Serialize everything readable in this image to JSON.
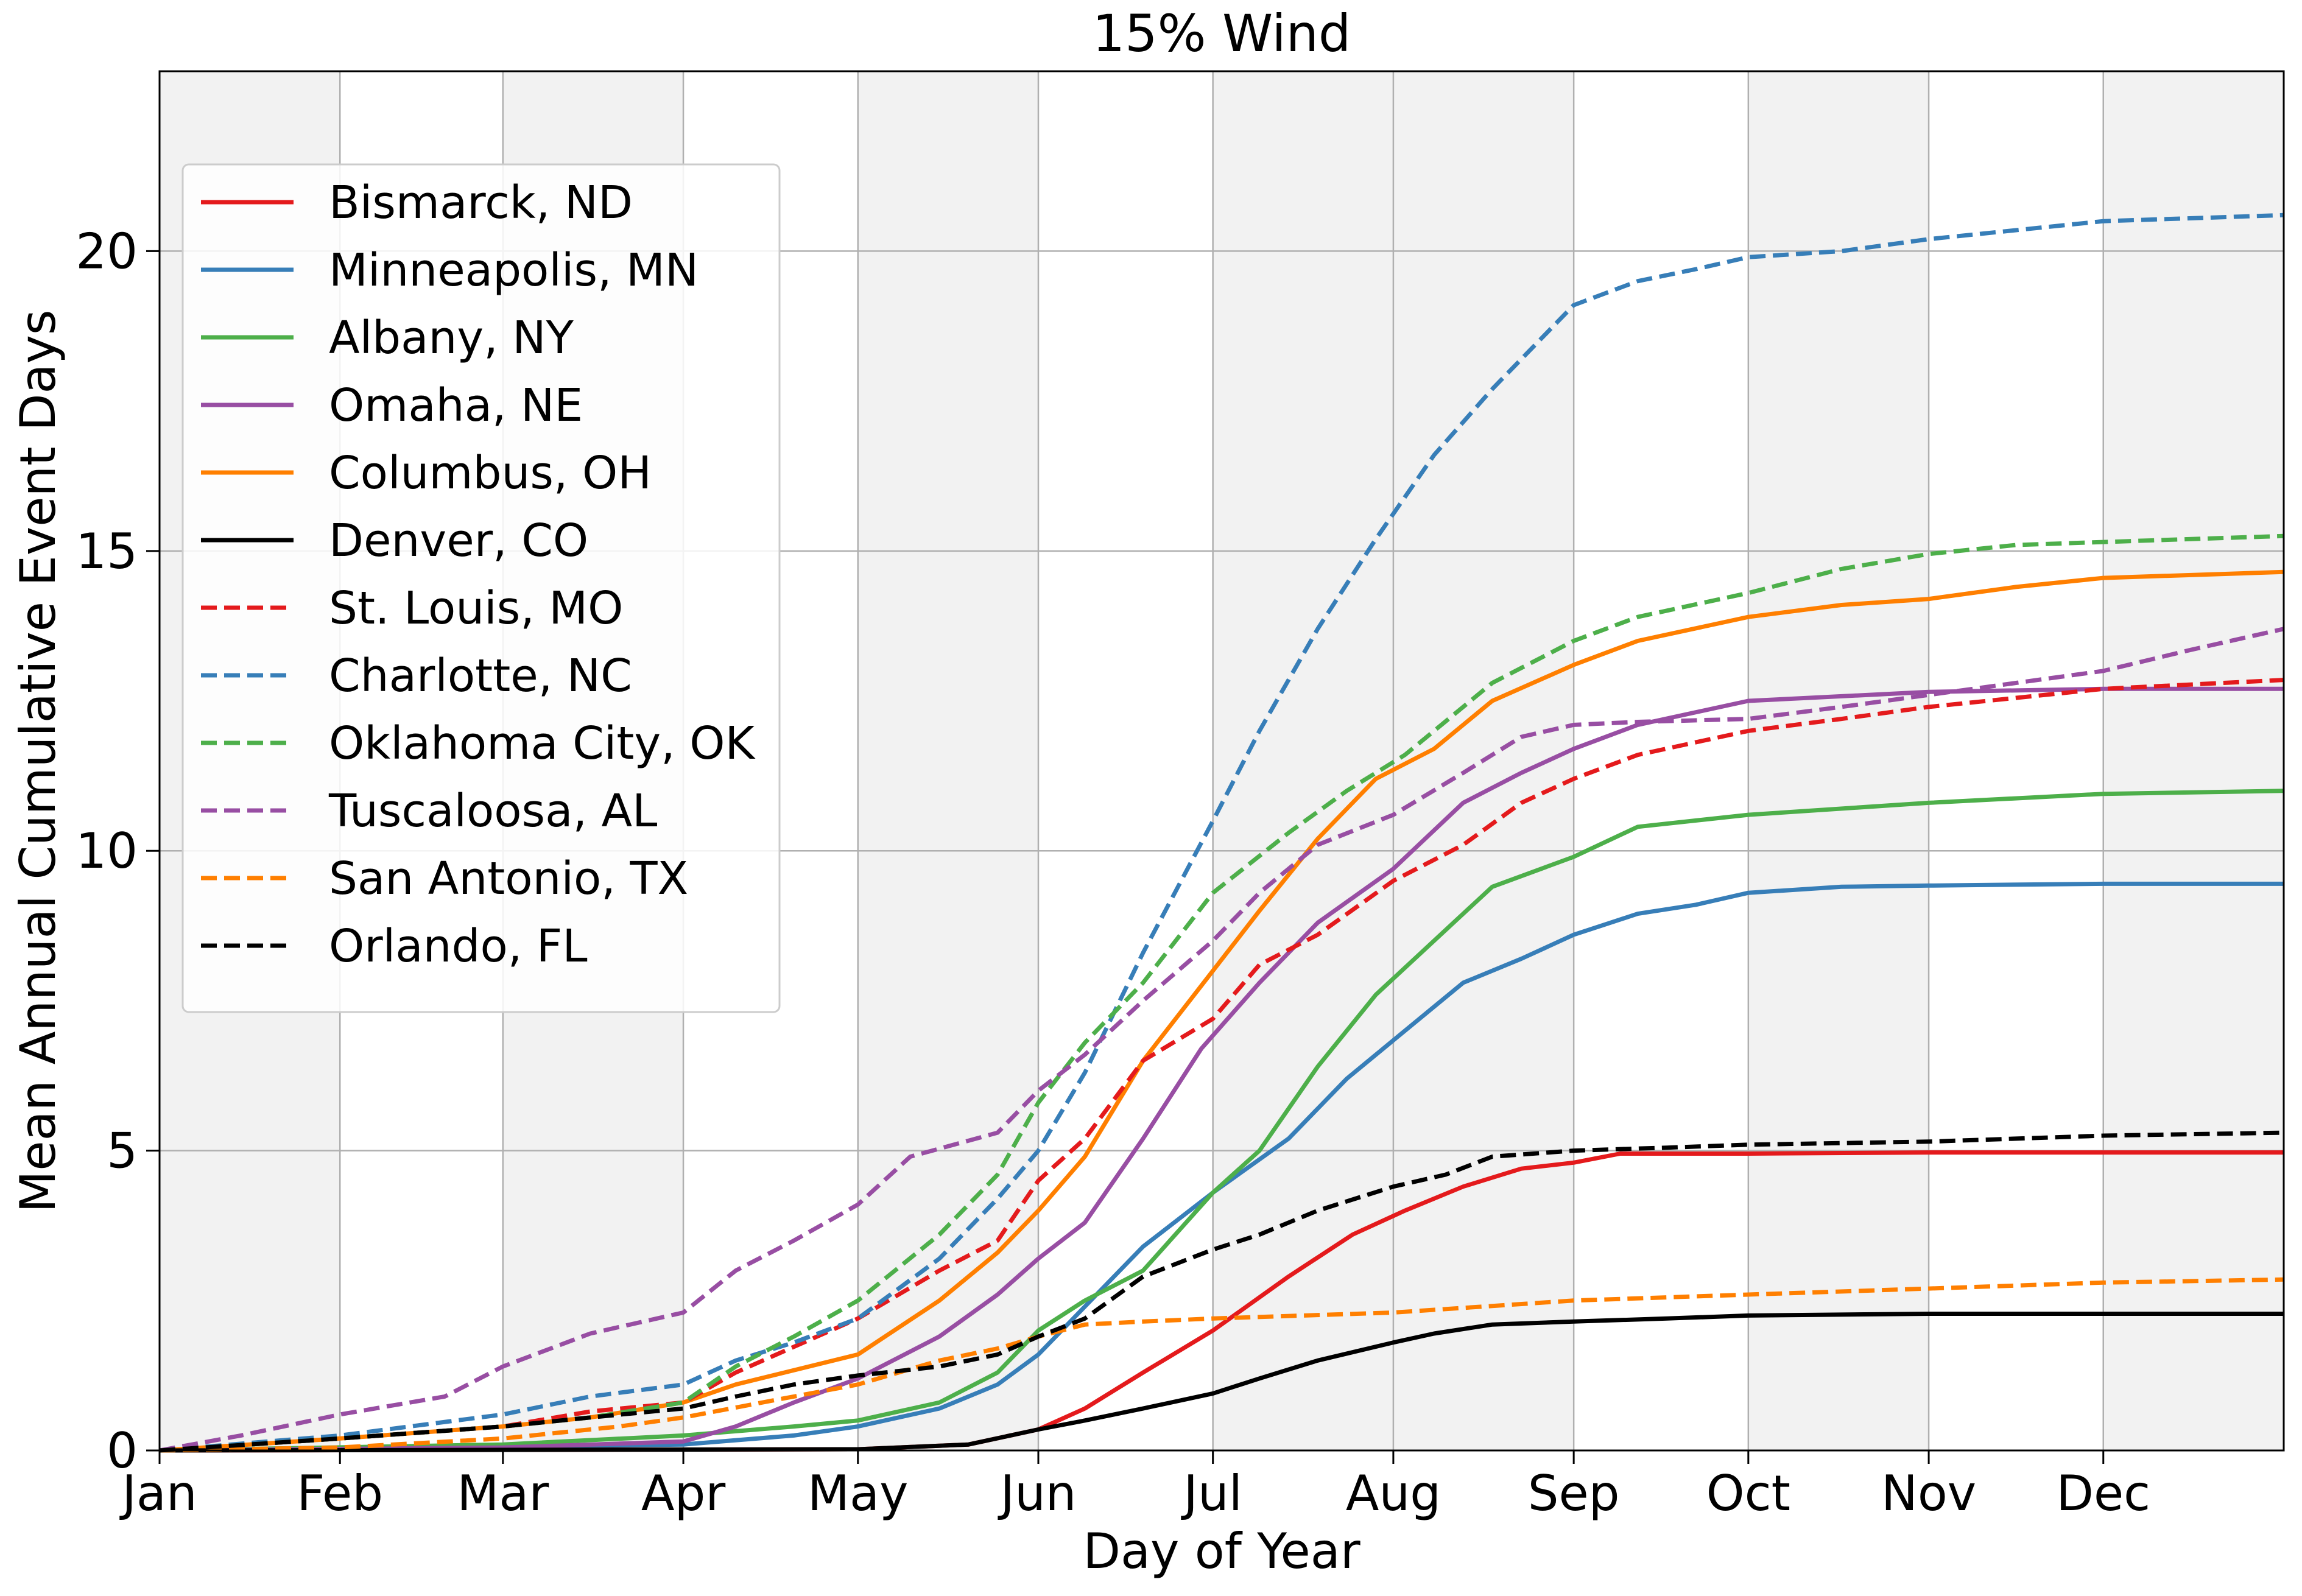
{
  "chart_data": {
    "type": "line",
    "title": "15% Wind",
    "xlabel": "Day of Year",
    "ylabel": "Mean Annual Cumulative Event Days",
    "xlim": [
      1,
      366
    ],
    "ylim": [
      0,
      23
    ],
    "x_ticks": [
      {
        "day": 1,
        "label": "Jan"
      },
      {
        "day": 32,
        "label": "Feb"
      },
      {
        "day": 60,
        "label": "Mar"
      },
      {
        "day": 91,
        "label": "Apr"
      },
      {
        "day": 121,
        "label": "May"
      },
      {
        "day": 152,
        "label": "Jun"
      },
      {
        "day": 182,
        "label": "Jul"
      },
      {
        "day": 213,
        "label": "Aug"
      },
      {
        "day": 244,
        "label": "Sep"
      },
      {
        "day": 274,
        "label": "Oct"
      },
      {
        "day": 305,
        "label": "Nov"
      },
      {
        "day": 335,
        "label": "Dec"
      }
    ],
    "y_ticks": [
      0,
      5,
      10,
      15,
      20
    ],
    "grid": true,
    "shaded_months": [
      "Jan",
      "Mar",
      "May",
      "Jul",
      "Aug",
      "Oct",
      "Dec"
    ],
    "legend_position": "upper-left",
    "series": [
      {
        "name": "Bismarck, ND",
        "color": "#e41a1c",
        "dash": "solid",
        "x": [
          1,
          121,
          140,
          152,
          160,
          170,
          182,
          195,
          206,
          215,
          225,
          235,
          244,
          252,
          274,
          305,
          366
        ],
        "y": [
          0,
          0.02,
          0.1,
          0.35,
          0.7,
          1.3,
          2.0,
          2.9,
          3.6,
          4.0,
          4.4,
          4.7,
          4.8,
          4.95,
          4.95,
          4.97,
          4.97
        ]
      },
      {
        "name": "Minneapolis, MN",
        "color": "#377eb8",
        "dash": "solid",
        "x": [
          1,
          91,
          110,
          121,
          135,
          145,
          152,
          160,
          170,
          182,
          195,
          205,
          215,
          225,
          235,
          244,
          255,
          265,
          274,
          290,
          305,
          335,
          366
        ],
        "y": [
          0,
          0.1,
          0.25,
          0.4,
          0.7,
          1.1,
          1.6,
          2.4,
          3.4,
          4.3,
          5.2,
          6.2,
          7.0,
          7.8,
          8.2,
          8.6,
          8.95,
          9.1,
          9.3,
          9.4,
          9.42,
          9.45,
          9.45
        ]
      },
      {
        "name": "Albany, NY",
        "color": "#4daf4a",
        "dash": "solid",
        "x": [
          1,
          60,
          91,
          110,
          121,
          135,
          145,
          152,
          160,
          170,
          182,
          190,
          200,
          210,
          220,
          230,
          244,
          255,
          274,
          305,
          335,
          366
        ],
        "y": [
          0,
          0.1,
          0.25,
          0.4,
          0.5,
          0.8,
          1.3,
          2.0,
          2.5,
          3.0,
          4.3,
          5.0,
          6.4,
          7.6,
          8.5,
          9.4,
          9.9,
          10.4,
          10.6,
          10.8,
          10.95,
          11.0
        ]
      },
      {
        "name": "Omaha, NE",
        "color": "#984ea3",
        "dash": "solid",
        "x": [
          1,
          60,
          91,
          100,
          110,
          121,
          135,
          145,
          152,
          160,
          170,
          180,
          190,
          200,
          213,
          225,
          235,
          244,
          255,
          274,
          305,
          335,
          366
        ],
        "y": [
          0,
          0.05,
          0.15,
          0.4,
          0.8,
          1.2,
          1.9,
          2.6,
          3.2,
          3.8,
          5.2,
          6.7,
          7.8,
          8.8,
          9.7,
          10.8,
          11.3,
          11.7,
          12.1,
          12.5,
          12.65,
          12.7,
          12.7
        ]
      },
      {
        "name": "Columbus, OH",
        "color": "#ff7f00",
        "dash": "solid",
        "x": [
          1,
          32,
          60,
          75,
          91,
          100,
          121,
          135,
          145,
          152,
          160,
          170,
          182,
          190,
          200,
          210,
          220,
          230,
          244,
          255,
          274,
          290,
          305,
          320,
          335,
          366
        ],
        "y": [
          0,
          0.2,
          0.4,
          0.55,
          0.8,
          1.1,
          1.6,
          2.5,
          3.3,
          4.0,
          4.9,
          6.5,
          8.0,
          9.0,
          10.2,
          11.2,
          11.7,
          12.5,
          13.1,
          13.5,
          13.9,
          14.1,
          14.2,
          14.4,
          14.55,
          14.65
        ]
      },
      {
        "name": "Denver, CO",
        "color": "#000000",
        "dash": "solid",
        "x": [
          1,
          121,
          140,
          152,
          160,
          170,
          182,
          190,
          200,
          213,
          220,
          230,
          244,
          260,
          274,
          305,
          366
        ],
        "y": [
          0,
          0.02,
          0.1,
          0.35,
          0.5,
          0.7,
          0.95,
          1.2,
          1.5,
          1.8,
          1.95,
          2.1,
          2.15,
          2.2,
          2.25,
          2.28,
          2.28
        ]
      },
      {
        "name": "St. Louis, MO",
        "color": "#e41a1c",
        "dash": "dashed",
        "x": [
          1,
          32,
          60,
          75,
          91,
          100,
          121,
          135,
          145,
          152,
          160,
          170,
          182,
          190,
          200,
          213,
          225,
          235,
          244,
          255,
          274,
          290,
          305,
          335,
          366
        ],
        "y": [
          0,
          0.2,
          0.4,
          0.65,
          0.8,
          1.3,
          2.2,
          3.0,
          3.5,
          4.5,
          5.2,
          6.5,
          7.2,
          8.1,
          8.6,
          9.5,
          10.1,
          10.8,
          11.2,
          11.6,
          12.0,
          12.2,
          12.4,
          12.7,
          12.85
        ]
      },
      {
        "name": "Charlotte, NC",
        "color": "#377eb8",
        "dash": "dashed",
        "x": [
          1,
          32,
          60,
          75,
          91,
          100,
          110,
          121,
          135,
          145,
          152,
          160,
          170,
          182,
          190,
          200,
          210,
          220,
          230,
          244,
          255,
          265,
          274,
          290,
          305,
          320,
          335,
          366
        ],
        "y": [
          0,
          0.25,
          0.6,
          0.9,
          1.1,
          1.5,
          1.8,
          2.2,
          3.2,
          4.2,
          5.0,
          6.3,
          8.3,
          10.5,
          12.0,
          13.7,
          15.2,
          16.6,
          17.7,
          19.1,
          19.5,
          19.7,
          19.9,
          20.0,
          20.2,
          20.35,
          20.5,
          20.6
        ]
      },
      {
        "name": "Oklahoma City, OK",
        "color": "#4daf4a",
        "dash": "dashed",
        "x": [
          1,
          32,
          60,
          75,
          91,
          100,
          110,
          121,
          135,
          145,
          152,
          160,
          170,
          182,
          195,
          205,
          215,
          230,
          244,
          255,
          274,
          290,
          305,
          320,
          335,
          366
        ],
        "y": [
          0,
          0.2,
          0.4,
          0.55,
          0.8,
          1.4,
          1.9,
          2.5,
          3.6,
          4.6,
          5.8,
          6.8,
          7.8,
          9.3,
          10.3,
          11.0,
          11.6,
          12.8,
          13.5,
          13.9,
          14.3,
          14.7,
          14.95,
          15.1,
          15.15,
          15.25
        ]
      },
      {
        "name": "Tuscaloosa, AL",
        "color": "#984ea3",
        "dash": "dashed",
        "x": [
          1,
          15,
          32,
          50,
          60,
          75,
          91,
          100,
          110,
          121,
          130,
          145,
          152,
          160,
          170,
          182,
          190,
          200,
          213,
          225,
          235,
          244,
          255,
          274,
          290,
          305,
          320,
          335,
          350,
          366
        ],
        "y": [
          0,
          0.25,
          0.6,
          0.9,
          1.4,
          1.95,
          2.3,
          3.0,
          3.5,
          4.1,
          4.9,
          5.3,
          6.0,
          6.6,
          7.5,
          8.5,
          9.3,
          10.1,
          10.6,
          11.3,
          11.9,
          12.1,
          12.15,
          12.2,
          12.4,
          12.6,
          12.8,
          13.0,
          13.35,
          13.7
        ]
      },
      {
        "name": "San Antonio, TX",
        "color": "#ff7f00",
        "dash": "dashed",
        "x": [
          1,
          32,
          60,
          80,
          91,
          110,
          121,
          135,
          145,
          152,
          160,
          170,
          182,
          213,
          244,
          274,
          305,
          335,
          366
        ],
        "y": [
          0,
          0.05,
          0.2,
          0.4,
          0.55,
          0.9,
          1.1,
          1.5,
          1.7,
          1.9,
          2.1,
          2.15,
          2.2,
          2.3,
          2.5,
          2.6,
          2.7,
          2.8,
          2.85
        ]
      },
      {
        "name": "Orlando, FL",
        "color": "#000000",
        "dash": "dashed",
        "x": [
          1,
          32,
          60,
          75,
          91,
          100,
          110,
          121,
          135,
          145,
          152,
          160,
          170,
          182,
          190,
          200,
          213,
          222,
          230,
          244,
          260,
          274,
          305,
          335,
          366
        ],
        "y": [
          0,
          0.2,
          0.4,
          0.55,
          0.7,
          0.9,
          1.1,
          1.25,
          1.4,
          1.6,
          1.9,
          2.2,
          2.9,
          3.35,
          3.6,
          4.0,
          4.4,
          4.6,
          4.9,
          5.0,
          5.05,
          5.1,
          5.15,
          5.25,
          5.3
        ]
      }
    ]
  }
}
